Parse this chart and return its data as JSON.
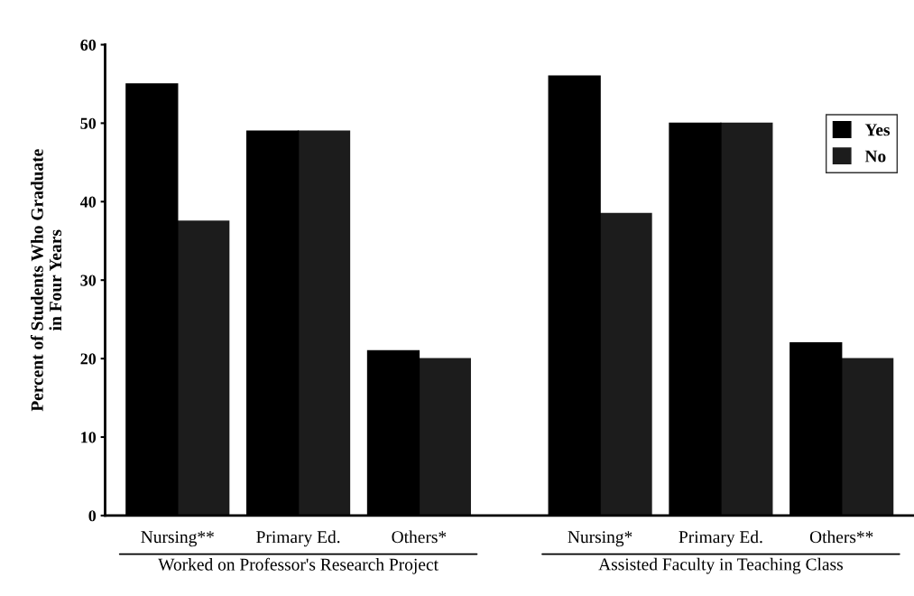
{
  "chart_data": {
    "type": "bar",
    "categories": [
      "Nursing**",
      "Primary Ed.",
      "Others*",
      "Nursing*",
      "Primary Ed.",
      "Others**"
    ],
    "series": [
      {
        "name": "Yes",
        "color": "#000000",
        "values": [
          55,
          49,
          21,
          56,
          50,
          22
        ]
      },
      {
        "name": "No",
        "color": "#1c1c1c",
        "values": [
          37.5,
          49,
          20,
          38.5,
          50,
          20
        ]
      }
    ],
    "ylabel": "Percent of Students Who Graduate\nin Four Years",
    "ylim": [
      0,
      60
    ],
    "yticks": [
      0,
      10,
      20,
      30,
      40,
      50,
      60
    ],
    "annotations": [
      "Worked on Professor's Research Project",
      "Assisted Faculty in Teaching Class"
    ],
    "grid": false,
    "legend": "top right"
  }
}
